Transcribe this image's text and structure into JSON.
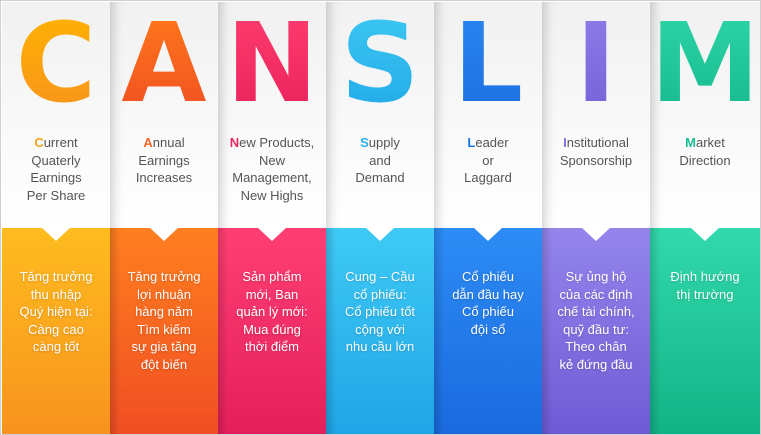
{
  "columns": [
    {
      "letter": "C",
      "desc_first": "C",
      "desc_rest": "urrent\nQuaterly\nEarnings\nPer Share",
      "vietnamese": "Tăng trưởng\nthu nhập\nQuý hiện tại:\nCàng cao\ncàng tốt",
      "letter_gradient": [
        "#ffb300",
        "#f7931e"
      ],
      "initial_color": "#f7a21b",
      "bottom_gradient": [
        "#ffbc1f",
        "#f7931e"
      ]
    },
    {
      "letter": "A",
      "desc_first": "A",
      "desc_rest": "nnual\nEarnings\nIncreases",
      "vietnamese": "Tăng trưởng\nlợi nhuận\nhàng năm\nTìm kiếm\nsự gia tăng\nđột biến",
      "letter_gradient": [
        "#ff7a1a",
        "#f04e23"
      ],
      "initial_color": "#f2672a",
      "bottom_gradient": [
        "#ff7f1f",
        "#f04e23"
      ]
    },
    {
      "letter": "N",
      "desc_first": "N",
      "desc_rest": "ew Products,\nNew\nManagement,\nNew Highs",
      "vietnamese": "Sản phẩm\nmới, Ban\nquản lý mới:\nMua đúng\nthời điểm",
      "letter_gradient": [
        "#ff3d6e",
        "#e8225c"
      ],
      "initial_color": "#e8285c",
      "bottom_gradient": [
        "#ff3f73",
        "#e41f5b"
      ]
    },
    {
      "letter": "S",
      "desc_first": "S",
      "desc_rest": "upply\nand\nDemand",
      "vietnamese": "Cung – Cầu\ncổ phiếu:\nCổ phiếu tốt\ncộng với\nnhu cầu lớn",
      "letter_gradient": [
        "#3dc8f2",
        "#22a9e8"
      ],
      "initial_color": "#27b1ea",
      "bottom_gradient": [
        "#3fcaf5",
        "#1fa5e6"
      ]
    },
    {
      "letter": "L",
      "desc_first": "L",
      "desc_rest": "eader\nor\nLaggard",
      "vietnamese": "Cổ phiếu\ndẫn đầu hay\nCổ phiếu\nđội sổ",
      "letter_gradient": [
        "#2a86f0",
        "#1c6fe0"
      ],
      "initial_color": "#1f78e6",
      "bottom_gradient": [
        "#2d8cf5",
        "#1a6ade"
      ]
    },
    {
      "letter": "I",
      "desc_first": "I",
      "desc_rest": "nstitutional\nSponsorship",
      "vietnamese": "Sự ủng hộ\ncủa các định\nchế tài chính,\nquỹ đầu tư:\nTheo chân\nkẻ đứng đầu",
      "letter_gradient": [
        "#8d7de8",
        "#7562d8"
      ],
      "initial_color": "#7e6ddc",
      "bottom_gradient": [
        "#9485ec",
        "#6f5bd5"
      ]
    },
    {
      "letter": "M",
      "desc_first": "M",
      "desc_rest": "arket\nDirection",
      "vietnamese": "Định hướng\nthị trường",
      "letter_gradient": [
        "#2fd6a8",
        "#14b88c"
      ],
      "initial_color": "#19bf92",
      "bottom_gradient": [
        "#31d9ac",
        "#12b386"
      ]
    }
  ]
}
